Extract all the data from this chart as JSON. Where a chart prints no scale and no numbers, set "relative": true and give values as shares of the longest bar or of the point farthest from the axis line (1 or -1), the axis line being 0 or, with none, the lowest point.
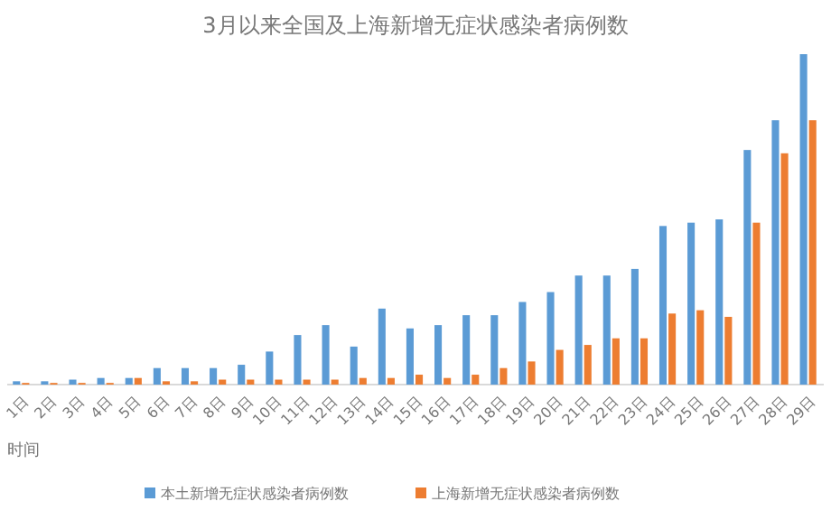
{
  "chart_data": {
    "type": "bar",
    "title": "3月以来全国及上海新增无症状感染者病例数",
    "xlabel": "时间",
    "relative": true,
    "legend": "bottom",
    "categories": [
      "1日",
      "2日",
      "3日",
      "4日",
      "5日",
      "6日",
      "7日",
      "8日",
      "9日",
      "10日",
      "11日",
      "12日",
      "13日",
      "14日",
      "15日",
      "16日",
      "17日",
      "18日",
      "19日",
      "20日",
      "21日",
      "22日",
      "23日",
      "24日",
      "25日",
      "26日",
      "27日",
      "28日",
      "29日"
    ],
    "series": [
      {
        "name": "本土新增无症状感染者病例数",
        "color": "#5b9bd5",
        "values": [
          0.01,
          0.01,
          0.015,
          0.02,
          0.02,
          0.05,
          0.05,
          0.05,
          0.06,
          0.1,
          0.15,
          0.18,
          0.115,
          0.23,
          0.17,
          0.18,
          0.21,
          0.21,
          0.25,
          0.28,
          0.33,
          0.33,
          0.35,
          0.48,
          0.49,
          0.5,
          0.71,
          0.8,
          1
        ]
      },
      {
        "name": "上海新增无症状感染者病例数",
        "color": "#ed7d31",
        "values": [
          0.005,
          0.005,
          0.005,
          0.005,
          0.02,
          0.01,
          0.01,
          0.015,
          0.015,
          0.015,
          0.015,
          0.015,
          0.02,
          0.02,
          0.03,
          0.02,
          0.03,
          0.05,
          0.07,
          0.105,
          0.12,
          0.14,
          0.14,
          0.215,
          0.225,
          0.205,
          0.49,
          0.7,
          0.8
        ]
      }
    ]
  }
}
